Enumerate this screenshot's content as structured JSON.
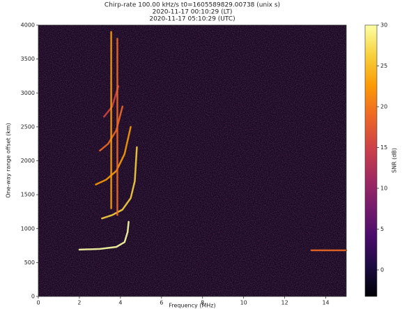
{
  "chart_data": {
    "type": "heatmap",
    "title": [
      "Chirp-rate 100.00 kHz/s t0=1605589829.00738 (unix s)",
      "2020-11-17 00:10:29 (LT)",
      "2020-11-17 05:10:29 (UTC)"
    ],
    "x_label": "Frequency (MHz)",
    "y_label": "One-way range offset (km)",
    "colorbar_label": "SNR (dB)",
    "xlim": [
      0,
      15
    ],
    "xticks": [
      0,
      2,
      4,
      6,
      8,
      10,
      12,
      14
    ],
    "ylim": [
      0,
      4000
    ],
    "yticks": [
      0,
      500,
      1000,
      1500,
      2000,
      2500,
      3000,
      3500,
      4000
    ],
    "clim": [
      -3.25,
      30
    ],
    "cticks": [
      0,
      5,
      10,
      15,
      20,
      25,
      30
    ],
    "colormap": [
      "#000004",
      "#1b0c41",
      "#4a0c6b",
      "#781c6d",
      "#a52c60",
      "#cf4446",
      "#ed6925",
      "#fb9b06",
      "#f7d13d",
      "#fcffa4"
    ],
    "background": "#14081f",
    "traces": [
      {
        "color": "#fcffa4",
        "x": [
          2.0,
          3.0,
          3.8,
          4.2,
          4.35,
          4.4
        ],
        "y": [
          690,
          700,
          730,
          800,
          950,
          1100
        ]
      },
      {
        "color": "#f7d13d",
        "x": [
          3.1,
          3.6,
          4.1,
          4.5,
          4.7,
          4.8
        ],
        "y": [
          1150,
          1200,
          1280,
          1450,
          1700,
          2200
        ]
      },
      {
        "color": "#fb9b06",
        "x": [
          2.8,
          3.3,
          3.8,
          4.2,
          4.5
        ],
        "y": [
          1650,
          1720,
          1850,
          2100,
          2500
        ]
      },
      {
        "color": "#ed6925",
        "x": [
          3.0,
          3.4,
          3.8,
          4.1
        ],
        "y": [
          2150,
          2250,
          2450,
          2800
        ]
      },
      {
        "color": "#cf4446",
        "x": [
          3.2,
          3.6,
          3.9
        ],
        "y": [
          2650,
          2800,
          3100
        ]
      },
      {
        "color": "#fb9b06",
        "x": [
          3.55,
          3.55
        ],
        "y": [
          1300,
          3900
        ]
      },
      {
        "color": "#ed6925",
        "x": [
          3.85,
          3.85
        ],
        "y": [
          1200,
          3800
        ]
      },
      {
        "color": "#ed6925",
        "x": [
          13.3,
          15.0
        ],
        "y": [
          680,
          680
        ]
      }
    ]
  }
}
